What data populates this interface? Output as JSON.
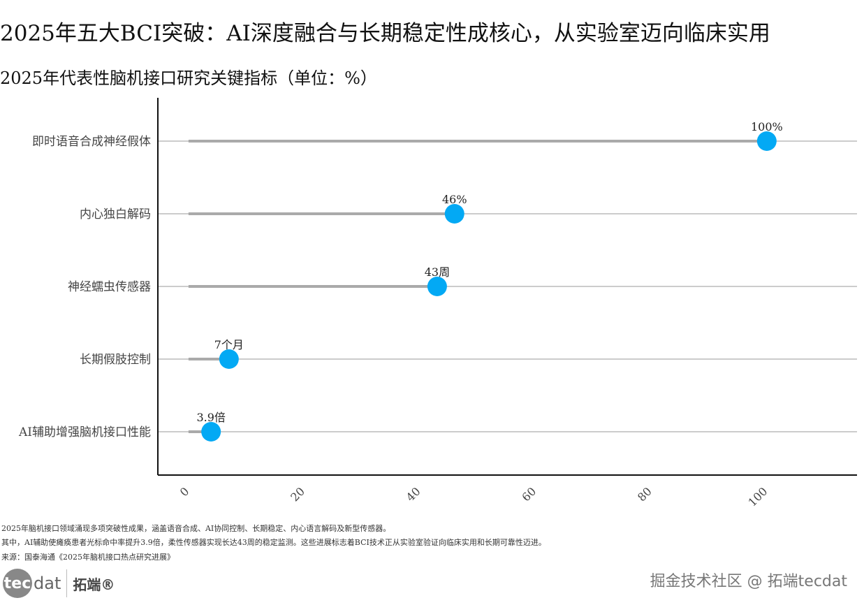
{
  "title": "2025年五大BCI突破：AI深度融合与长期稳定性成核心，从实验室迈向临床实用",
  "chart_data": {
    "type": "lollipop",
    "title": "2025年代表性脑机接口研究关键指标（单位：%）",
    "categories": [
      "即时语音合成神经假体",
      "内心独白解码",
      "神经蠕虫传感器",
      "长期假肢控制",
      "AI辅助增强脑机接口性能"
    ],
    "values": [
      100,
      46,
      43,
      7,
      3.9
    ],
    "data_labels": [
      "100%",
      "46%",
      "43周",
      "7个月",
      "3.9倍"
    ],
    "xticks": [
      0,
      20,
      40,
      60,
      80,
      100
    ],
    "xlim": [
      -5.3,
      115.6
    ],
    "grid": "horizontal",
    "colors": {
      "point": "#03A9F4",
      "stem": "#AAAAAA",
      "grid": "#CCCCCC"
    }
  },
  "notes": [
    "2025年脑机接口领域涌现多项突破性成果，涵盖语音合成、AI协同控制、长期稳定、内心语言解码及新型传感器。",
    "其中，AI辅助使瘫痪患者光标命中率提升3.9倍，柔性传感器实现长达43周的稳定监测。这些进展标志着BCI技术正从实验室验证向临床实用和长期可靠性迈进。",
    "来源：国泰海通《2025年脑机接口热点研究进展》"
  ],
  "logo": {
    "tec": "tec",
    "dat": "dat",
    "cn": "拓端®"
  },
  "watermark": "掘金技术社区 @ 拓端tecdat"
}
